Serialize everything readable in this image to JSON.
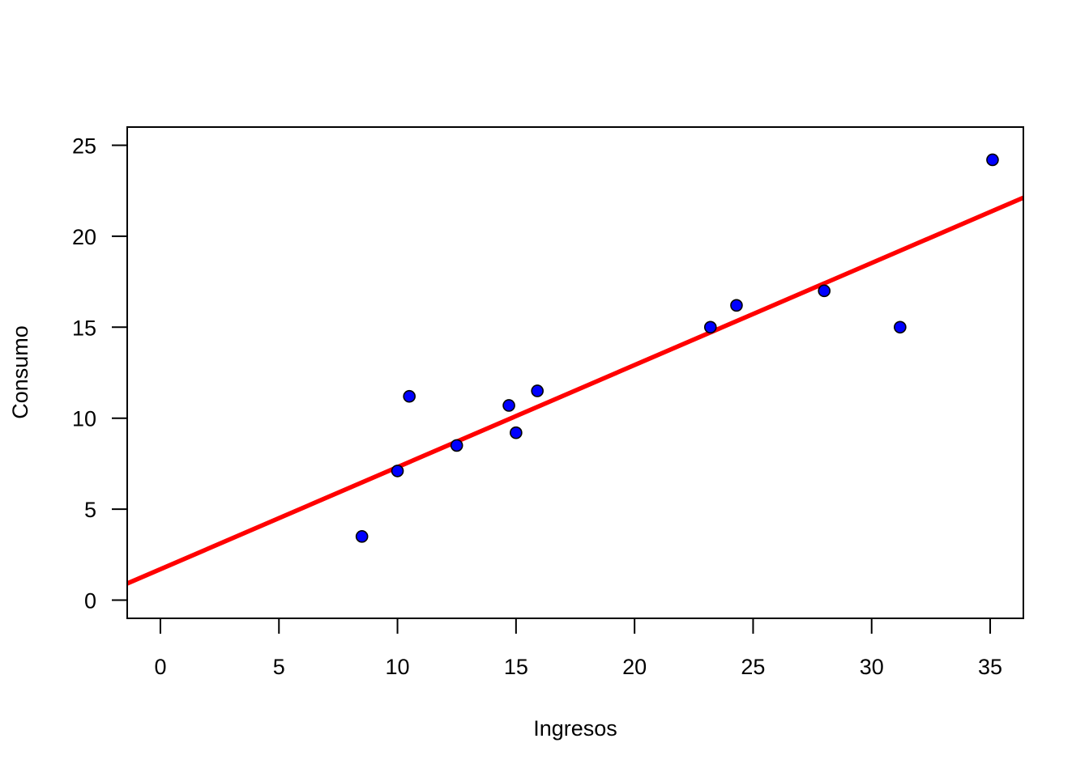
{
  "chart_data": {
    "type": "scatter",
    "title": "",
    "xlabel": "Ingresos",
    "ylabel": "Consumo",
    "xlim": [
      -1.4,
      36.4
    ],
    "ylim": [
      -1.0,
      26.0
    ],
    "x_ticks": [
      0,
      5,
      10,
      15,
      20,
      25,
      30,
      35
    ],
    "y_ticks": [
      0,
      5,
      10,
      15,
      20,
      25
    ],
    "grid": false,
    "legend": "none",
    "series": [
      {
        "points": [
          {
            "x": 8.5,
            "y": 3.5
          },
          {
            "x": 10.0,
            "y": 7.1
          },
          {
            "x": 10.5,
            "y": 11.2
          },
          {
            "x": 12.5,
            "y": 8.5
          },
          {
            "x": 14.7,
            "y": 10.7
          },
          {
            "x": 15.0,
            "y": 9.2
          },
          {
            "x": 15.9,
            "y": 11.5
          },
          {
            "x": 23.2,
            "y": 15.0
          },
          {
            "x": 24.3,
            "y": 16.2
          },
          {
            "x": 28.0,
            "y": 17.0
          },
          {
            "x": 31.2,
            "y": 15.0
          },
          {
            "x": 35.1,
            "y": 24.2
          }
        ],
        "color": "#0000ff",
        "edge_color": "#000000"
      }
    ],
    "regression_line": {
      "intercept": 1.7,
      "slope": 0.561,
      "color": "#ff0000"
    }
  }
}
